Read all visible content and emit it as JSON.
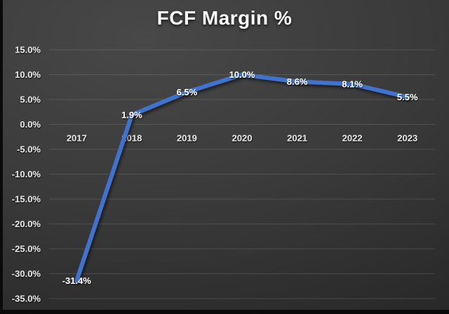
{
  "title": "FCF Margin %",
  "chart_data": {
    "type": "line",
    "title": "FCF Margin %",
    "categories": [
      "2017",
      "2018",
      "2019",
      "2020",
      "2021",
      "2022",
      "2023"
    ],
    "series": [
      {
        "name": "FCF Margin %",
        "values": [
          -31.4,
          1.9,
          6.5,
          10.0,
          8.6,
          8.1,
          5.5
        ]
      }
    ],
    "data_labels": [
      "-31.4%",
      "1.9%",
      "6.5%",
      "10.0%",
      "8.6%",
      "8.1%",
      "5.5%"
    ],
    "y_ticks": [
      "15.0%",
      "10.0%",
      "5.0%",
      "0.0%",
      "-5.0%",
      "-10.0%",
      "-15.0%",
      "-20.0%",
      "-25.0%",
      "-30.0%",
      "-35.0%"
    ],
    "y_tick_values": [
      15,
      10,
      5,
      0,
      -5,
      -10,
      -15,
      -20,
      -25,
      -30,
      -35
    ],
    "ylim": [
      -35,
      15
    ],
    "xlabel": "",
    "ylabel": "",
    "grid": true,
    "legend_position": "none",
    "line_color": "#4173cf",
    "label_color": "#fdfdfd",
    "axis_label_color": "#e3e3e3",
    "background_top": "#484848",
    "background_bottom": "#262626"
  }
}
